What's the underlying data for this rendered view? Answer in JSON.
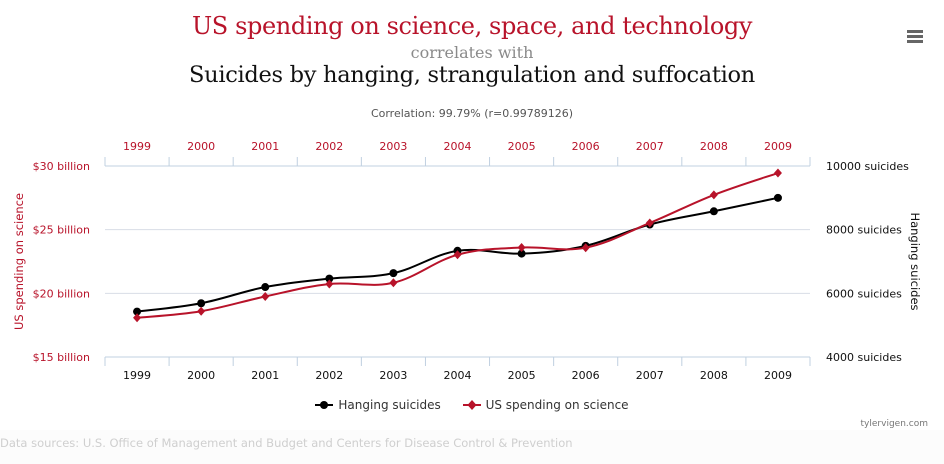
{
  "header": {
    "title_var1": "US spending on science, space, and technology",
    "connector": "correlates with",
    "title_var2": "Suicides by hanging, strangulation and suffocation",
    "correlation": "Correlation: 99.79% (r=0.99789126)"
  },
  "menu": {
    "icon": "hamburger-menu-icon"
  },
  "legend": {
    "items": [
      {
        "label": "Hanging suicides",
        "color": "#000000",
        "marker": "circle"
      },
      {
        "label": "US spending on science",
        "color": "#b8132a",
        "marker": "diamond"
      }
    ]
  },
  "credit": "tylervigen.com",
  "sources": "Data sources: U.S. Office of Management and Budget and Centers for Disease Control & Prevention",
  "colors": {
    "spending": "#b8132a",
    "suicides": "#000000",
    "grid": "#d8dde6",
    "axis": "#c0d0e0"
  },
  "chart_data": {
    "type": "line",
    "categories": [
      "1999",
      "2000",
      "2001",
      "2002",
      "2003",
      "2004",
      "2005",
      "2006",
      "2007",
      "2008",
      "2009"
    ],
    "series": [
      {
        "name": "Hanging suicides",
        "axis": "right",
        "color": "#000000",
        "marker": "circle",
        "values": [
          5427,
          5688,
          6198,
          6462,
          6635,
          7336,
          7248,
          7491,
          8161,
          8578,
          9000
        ]
      },
      {
        "name": "US spending on science",
        "axis": "left",
        "color": "#b8132a",
        "marker": "diamond",
        "values": [
          18.079,
          18.594,
          19.753,
          20.734,
          20.831,
          23.029,
          23.597,
          23.584,
          25.525,
          27.731,
          29.449
        ]
      }
    ],
    "left_axis": {
      "label": "US spending on science",
      "range": [
        15,
        30
      ],
      "ticks": [
        30,
        25,
        20,
        15
      ],
      "tick_labels": [
        "$30 billion",
        "$25 billion",
        "$20 billion",
        "$15 billion"
      ]
    },
    "right_axis": {
      "label": "Hanging suicides",
      "range": [
        4000,
        10000
      ],
      "ticks": [
        10000,
        8000,
        6000,
        4000
      ],
      "tick_labels": [
        "10000 suicides",
        "8000 suicides",
        "6000 suicides",
        "4000 suicides"
      ]
    },
    "x_top_labels": [
      "1999",
      "2000",
      "2001",
      "2002",
      "2003",
      "2004",
      "2005",
      "2006",
      "2007",
      "2008",
      "2009"
    ],
    "x_bottom_labels": [
      "1999",
      "2000",
      "2001",
      "2002",
      "2003",
      "2004",
      "2005",
      "2006",
      "2007",
      "2008",
      "2009"
    ],
    "grid": true,
    "legend_position": "bottom-center"
  }
}
